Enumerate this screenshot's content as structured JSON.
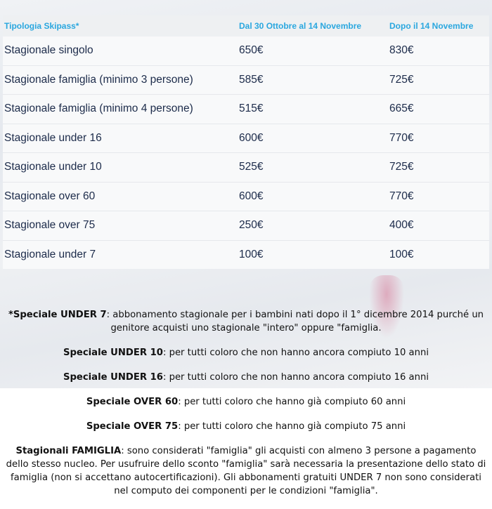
{
  "table": {
    "headers": [
      "Tipologia Skipass*",
      "Dal 30 Ottobre al 14 Novembre",
      "Dopo il 14 Novembre"
    ],
    "rows": [
      [
        "Stagionale singolo",
        "650€",
        "830€"
      ],
      [
        "Stagionale famiglia (minimo 3 persone)",
        "585€",
        "725€"
      ],
      [
        "Stagionale famiglia (minimo 4 persone)",
        "515€",
        "665€"
      ],
      [
        "Stagionale under 16",
        "600€",
        "770€"
      ],
      [
        "Stagionale under 10",
        "525€",
        "725€"
      ],
      [
        "Stagionale over 60",
        "600€",
        "770€"
      ],
      [
        "Stagionale over 75",
        "250€",
        "400€"
      ],
      [
        "Stagionale under 7",
        "100€",
        "100€"
      ]
    ]
  },
  "notes": [
    {
      "title": "*Speciale UNDER 7",
      "text": ": abbonamento stagionale per i bambini nati dopo il 1° dicembre 2014 purché un genitore acquisti uno stagionale \"intero\" oppure \"famiglia."
    },
    {
      "title": "Speciale UNDER 10",
      "text": ": per tutti coloro che non hanno ancora compiuto 10 anni"
    },
    {
      "title": "Speciale UNDER 16",
      "text": ": per tutti coloro che non hanno ancora compiuto 16 anni"
    },
    {
      "title": "Speciale OVER 60",
      "text": ": per tutti coloro che hanno già compiuto 60 anni"
    },
    {
      "title": "Speciale OVER 75",
      "text": ": per tutti coloro che hanno già compiuto 75 anni"
    },
    {
      "title": "Stagionali FAMIGLIA",
      "text": ": sono considerati \"famiglia\" gli acquisti con almeno 3 persone a pagamento dello stesso nucleo. Per usufruire dello sconto \"famiglia\" sarà necessaria la presentazione dello stato di famiglia (non si accettano autocertificazioni). Gli abbonamenti gratuiti UNDER 7 non sono considerati nel computo dei componenti per le condizioni \"famiglia\"."
    }
  ],
  "colors": {
    "header_text": "#2aa7df",
    "cell_text": "#1c2b4a"
  }
}
